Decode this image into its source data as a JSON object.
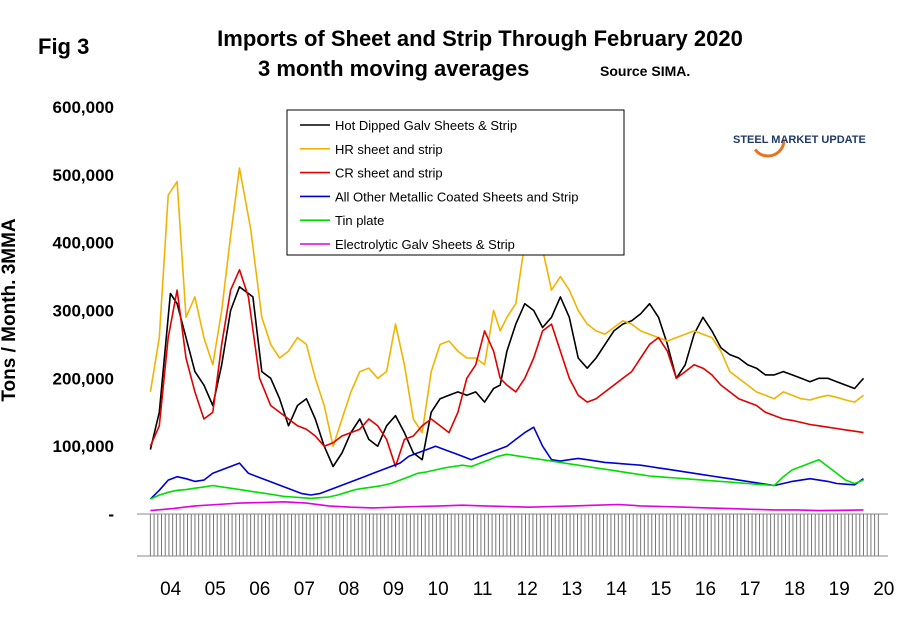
{
  "figure": {
    "fig_label": "Fig 3",
    "title_line1": "Imports of Sheet and Strip Through February 2020",
    "title_line2": "3 month moving averages",
    "source": "Source SIMA."
  },
  "logo": {
    "text": "STEEL MARKET UPDATE",
    "color_dark": "#1f3a68",
    "color_accent": "#e8731f"
  },
  "chart_data": {
    "type": "line",
    "title": "Imports of Sheet and Strip Through February 2020",
    "subtitle": "3 month moving averages",
    "xlabel": "",
    "ylabel": "Tons / Month. 3MMA",
    "ylim": [
      0,
      600000
    ],
    "ytick_values": [
      0,
      100000,
      200000,
      300000,
      400000,
      500000,
      600000
    ],
    "ytick_labels": [
      "-",
      "100,000",
      "200,000",
      "300,000",
      "400,000",
      "500,000",
      "600,000"
    ],
    "categories": [
      "04",
      "05",
      "06",
      "07",
      "08",
      "09",
      "10",
      "11",
      "12",
      "13",
      "14",
      "15",
      "16",
      "17",
      "18",
      "19",
      "20"
    ],
    "legend_position": "top-left",
    "grid": false,
    "series": [
      {
        "name": "Hot Dipped Galv Sheets & Strip",
        "color": "#000000",
        "x": [
          2004.0,
          2004.2,
          2004.45,
          2004.6,
          2004.8,
          2005.0,
          2005.2,
          2005.4,
          2005.6,
          2005.8,
          2006.0,
          2006.3,
          2006.5,
          2006.7,
          2006.9,
          2007.1,
          2007.3,
          2007.5,
          2007.7,
          2007.9,
          2008.1,
          2008.3,
          2008.5,
          2008.7,
          2008.9,
          2009.1,
          2009.3,
          2009.5,
          2009.7,
          2009.9,
          2010.1,
          2010.3,
          2010.5,
          2010.7,
          2010.9,
          2011.1,
          2011.3,
          2011.5,
          2011.7,
          2011.85,
          2012.0,
          2012.2,
          2012.4,
          2012.6,
          2012.8,
          2013.0,
          2013.2,
          2013.4,
          2013.6,
          2013.8,
          2014.0,
          2014.2,
          2014.4,
          2014.6,
          2014.8,
          2015.0,
          2015.2,
          2015.4,
          2015.6,
          2015.8,
          2016.0,
          2016.2,
          2016.4,
          2016.6,
          2016.8,
          2017.0,
          2017.2,
          2017.4,
          2017.6,
          2017.8,
          2018.0,
          2018.2,
          2018.4,
          2018.6,
          2018.8,
          2019.0,
          2019.2,
          2019.4,
          2019.6,
          2019.8,
          2020.0
        ],
        "values": [
          95000,
          150000,
          325000,
          310000,
          260000,
          210000,
          190000,
          160000,
          220000,
          300000,
          335000,
          320000,
          210000,
          200000,
          170000,
          130000,
          160000,
          170000,
          140000,
          100000,
          70000,
          90000,
          120000,
          140000,
          110000,
          100000,
          130000,
          145000,
          120000,
          90000,
          80000,
          150000,
          170000,
          175000,
          180000,
          175000,
          180000,
          165000,
          185000,
          190000,
          240000,
          280000,
          310000,
          300000,
          275000,
          290000,
          320000,
          290000,
          230000,
          215000,
          230000,
          250000,
          270000,
          280000,
          285000,
          295000,
          310000,
          290000,
          250000,
          200000,
          220000,
          265000,
          290000,
          270000,
          245000,
          235000,
          230000,
          220000,
          215000,
          205000,
          205000,
          210000,
          205000,
          200000,
          195000,
          200000,
          200000,
          195000,
          190000,
          185000,
          200000
        ]
      },
      {
        "name": "HR sheet and strip",
        "color": "#f0b400",
        "x": [
          2004.0,
          2004.2,
          2004.4,
          2004.6,
          2004.8,
          2005.0,
          2005.2,
          2005.4,
          2005.6,
          2005.8,
          2006.0,
          2006.25,
          2006.5,
          2006.7,
          2006.9,
          2007.1,
          2007.3,
          2007.5,
          2007.7,
          2007.9,
          2008.1,
          2008.3,
          2008.5,
          2008.7,
          2008.9,
          2009.1,
          2009.3,
          2009.5,
          2009.7,
          2009.9,
          2010.1,
          2010.3,
          2010.5,
          2010.7,
          2010.9,
          2011.1,
          2011.3,
          2011.5,
          2011.7,
          2011.85,
          2012.0,
          2012.2,
          2012.4,
          2012.6,
          2012.8,
          2013.0,
          2013.2,
          2013.4,
          2013.6,
          2013.8,
          2014.0,
          2014.2,
          2014.4,
          2014.6,
          2014.8,
          2015.0,
          2015.2,
          2015.4,
          2015.6,
          2015.8,
          2016.0,
          2016.2,
          2016.4,
          2016.6,
          2016.8,
          2017.0,
          2017.2,
          2017.4,
          2017.6,
          2017.8,
          2018.0,
          2018.2,
          2018.4,
          2018.6,
          2018.8,
          2019.0,
          2019.2,
          2019.4,
          2019.6,
          2019.8,
          2020.0
        ],
        "values": [
          180000,
          260000,
          470000,
          490000,
          290000,
          320000,
          260000,
          220000,
          300000,
          410000,
          510000,
          420000,
          290000,
          250000,
          230000,
          240000,
          260000,
          250000,
          200000,
          160000,
          100000,
          140000,
          180000,
          210000,
          215000,
          200000,
          210000,
          280000,
          220000,
          140000,
          120000,
          210000,
          250000,
          255000,
          240000,
          230000,
          230000,
          220000,
          300000,
          270000,
          290000,
          310000,
          400000,
          450000,
          390000,
          330000,
          350000,
          330000,
          300000,
          280000,
          270000,
          265000,
          275000,
          285000,
          280000,
          270000,
          265000,
          260000,
          255000,
          260000,
          265000,
          270000,
          265000,
          260000,
          240000,
          210000,
          200000,
          190000,
          180000,
          175000,
          170000,
          180000,
          175000,
          170000,
          168000,
          172000,
          175000,
          172000,
          168000,
          165000,
          175000
        ]
      },
      {
        "name": "CR sheet and strip",
        "color": "#e00000",
        "x": [
          2004.0,
          2004.2,
          2004.4,
          2004.6,
          2004.8,
          2005.0,
          2005.2,
          2005.4,
          2005.6,
          2005.8,
          2006.0,
          2006.2,
          2006.45,
          2006.7,
          2006.9,
          2007.1,
          2007.3,
          2007.5,
          2007.7,
          2007.9,
          2008.1,
          2008.3,
          2008.5,
          2008.7,
          2008.9,
          2009.1,
          2009.3,
          2009.5,
          2009.7,
          2009.9,
          2010.1,
          2010.3,
          2010.5,
          2010.7,
          2010.9,
          2011.1,
          2011.3,
          2011.5,
          2011.7,
          2011.85,
          2012.0,
          2012.2,
          2012.4,
          2012.6,
          2012.8,
          2013.0,
          2013.2,
          2013.4,
          2013.6,
          2013.8,
          2014.0,
          2014.2,
          2014.4,
          2014.6,
          2014.8,
          2015.0,
          2015.2,
          2015.4,
          2015.6,
          2015.8,
          2016.0,
          2016.2,
          2016.4,
          2016.6,
          2016.8,
          2017.0,
          2017.2,
          2017.4,
          2017.6,
          2017.8,
          2018.0,
          2018.2,
          2018.4,
          2018.6,
          2018.8,
          2019.0,
          2019.2,
          2019.4,
          2019.6,
          2019.8,
          2020.0
        ],
        "values": [
          100000,
          130000,
          260000,
          330000,
          230000,
          180000,
          140000,
          150000,
          250000,
          330000,
          360000,
          320000,
          200000,
          160000,
          150000,
          140000,
          130000,
          125000,
          115000,
          100000,
          105000,
          115000,
          120000,
          125000,
          140000,
          130000,
          110000,
          70000,
          110000,
          115000,
          130000,
          140000,
          130000,
          120000,
          150000,
          200000,
          220000,
          270000,
          240000,
          200000,
          190000,
          180000,
          200000,
          230000,
          270000,
          280000,
          240000,
          200000,
          175000,
          165000,
          170000,
          180000,
          190000,
          200000,
          210000,
          230000,
          250000,
          260000,
          240000,
          200000,
          210000,
          220000,
          215000,
          205000,
          190000,
          180000,
          170000,
          165000,
          160000,
          150000,
          145000,
          140000,
          138000,
          135000,
          132000,
          130000,
          128000,
          126000,
          124000,
          122000,
          120000
        ]
      },
      {
        "name": "All Other Metallic Coated Sheets and Strip",
        "color": "#0000d0",
        "x": [
          2004.0,
          2004.2,
          2004.4,
          2004.6,
          2004.8,
          2005.0,
          2005.2,
          2005.4,
          2005.6,
          2005.8,
          2006.0,
          2006.2,
          2006.4,
          2006.6,
          2006.8,
          2007.0,
          2007.2,
          2007.4,
          2007.6,
          2007.8,
          2008.0,
          2008.2,
          2008.4,
          2008.6,
          2008.8,
          2009.0,
          2009.2,
          2009.4,
          2009.6,
          2009.8,
          2010.0,
          2010.2,
          2010.4,
          2010.6,
          2010.8,
          2011.0,
          2011.2,
          2011.4,
          2011.6,
          2011.8,
          2012.0,
          2012.2,
          2012.4,
          2012.6,
          2012.8,
          2013.0,
          2013.2,
          2013.4,
          2013.6,
          2013.8,
          2014.0,
          2014.2,
          2014.4,
          2014.6,
          2014.8,
          2015.0,
          2015.2,
          2015.4,
          2015.6,
          2015.8,
          2016.0,
          2016.2,
          2016.4,
          2016.6,
          2016.8,
          2017.0,
          2017.2,
          2017.4,
          2017.6,
          2017.8,
          2018.0,
          2018.2,
          2018.4,
          2018.6,
          2018.8,
          2019.0,
          2019.2,
          2019.4,
          2019.6,
          2019.8,
          2020.0
        ],
        "values": [
          22000,
          35000,
          50000,
          55000,
          52000,
          48000,
          50000,
          60000,
          65000,
          70000,
          75000,
          60000,
          55000,
          50000,
          45000,
          40000,
          35000,
          30000,
          28000,
          30000,
          35000,
          40000,
          45000,
          50000,
          55000,
          60000,
          65000,
          70000,
          75000,
          85000,
          90000,
          95000,
          100000,
          95000,
          90000,
          85000,
          80000,
          85000,
          90000,
          95000,
          100000,
          110000,
          120000,
          128000,
          100000,
          80000,
          78000,
          80000,
          82000,
          80000,
          78000,
          76000,
          75000,
          74000,
          73000,
          72000,
          70000,
          68000,
          66000,
          64000,
          62000,
          60000,
          58000,
          56000,
          54000,
          52000,
          50000,
          48000,
          46000,
          44000,
          42000,
          45000,
          48000,
          50000,
          52000,
          50000,
          48000,
          45000,
          44000,
          43000,
          52000
        ]
      },
      {
        "name": "Tin plate",
        "color": "#00dd00",
        "x": [
          2004.0,
          2004.2,
          2004.4,
          2004.6,
          2004.8,
          2005.0,
          2005.2,
          2005.4,
          2005.6,
          2005.8,
          2006.0,
          2006.2,
          2006.4,
          2006.6,
          2006.8,
          2007.0,
          2007.2,
          2007.4,
          2007.6,
          2007.8,
          2008.0,
          2008.2,
          2008.4,
          2008.6,
          2008.8,
          2009.0,
          2009.2,
          2009.4,
          2009.6,
          2009.8,
          2010.0,
          2010.2,
          2010.4,
          2010.6,
          2010.8,
          2011.0,
          2011.2,
          2011.4,
          2011.6,
          2011.8,
          2012.0,
          2012.2,
          2012.4,
          2012.6,
          2012.8,
          2013.0,
          2013.2,
          2013.4,
          2013.6,
          2013.8,
          2014.0,
          2014.2,
          2014.4,
          2014.6,
          2014.8,
          2015.0,
          2015.2,
          2015.4,
          2015.6,
          2015.8,
          2016.0,
          2016.2,
          2016.4,
          2016.6,
          2016.8,
          2017.0,
          2017.2,
          2017.4,
          2017.6,
          2017.8,
          2018.0,
          2018.2,
          2018.4,
          2018.6,
          2018.8,
          2019.0,
          2019.2,
          2019.4,
          2019.6,
          2019.8,
          2020.0
        ],
        "values": [
          22000,
          28000,
          32000,
          35000,
          36000,
          38000,
          40000,
          42000,
          40000,
          38000,
          36000,
          34000,
          32000,
          30000,
          28000,
          26000,
          25000,
          24000,
          23000,
          24000,
          25000,
          28000,
          32000,
          36000,
          38000,
          40000,
          42000,
          45000,
          50000,
          55000,
          60000,
          62000,
          65000,
          68000,
          70000,
          72000,
          70000,
          75000,
          80000,
          85000,
          88000,
          86000,
          84000,
          82000,
          80000,
          78000,
          76000,
          74000,
          72000,
          70000,
          68000,
          66000,
          64000,
          62000,
          60000,
          58000,
          56000,
          55000,
          54000,
          53000,
          52000,
          51000,
          50000,
          49000,
          48000,
          47000,
          46000,
          45000,
          44000,
          43000,
          42000,
          55000,
          65000,
          70000,
          75000,
          80000,
          70000,
          60000,
          50000,
          45000,
          50000
        ]
      },
      {
        "name": "Electrolytic Galv Sheets & Strip",
        "color": "#e000e0",
        "x": [
          2004.0,
          2004.5,
          2005.0,
          2005.5,
          2006.0,
          2006.5,
          2007.0,
          2007.5,
          2008.0,
          2008.5,
          2009.0,
          2009.5,
          2010.0,
          2010.5,
          2011.0,
          2011.5,
          2012.0,
          2012.5,
          2013.0,
          2013.5,
          2014.0,
          2014.5,
          2015.0,
          2015.5,
          2016.0,
          2016.5,
          2017.0,
          2017.5,
          2018.0,
          2018.5,
          2019.0,
          2019.5,
          2020.0
        ],
        "values": [
          5000,
          8000,
          12000,
          14000,
          16000,
          17000,
          18000,
          16000,
          12000,
          10000,
          9000,
          10000,
          11000,
          12000,
          13000,
          12000,
          11000,
          10000,
          11000,
          12000,
          13000,
          14000,
          12000,
          11000,
          10000,
          9000,
          8000,
          7000,
          6000,
          6000,
          5000,
          5500,
          6000
        ]
      }
    ]
  }
}
